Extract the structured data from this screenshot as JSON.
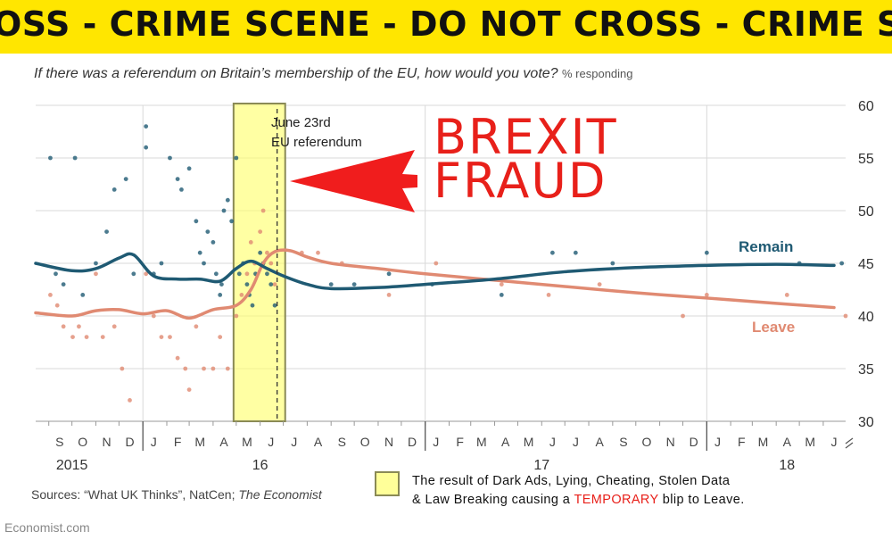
{
  "banner": {
    "text": "OSS - CRIME SCENE  -  DO NOT CROSS - CRIME SCE"
  },
  "subtitle": {
    "question": "If there was a referendum on Britain’s membership of the EU, how would you vote?",
    "units": "% responding"
  },
  "annotation": {
    "ref_line1": "June 23rd",
    "ref_line2": "EU referendum",
    "fraud_line1": "BREXIT",
    "fraud_line2": "FRAUD",
    "label_remain": "Remain",
    "label_leave": "Leave"
  },
  "sources": {
    "prefix": "Sources: “What UK Thinks”, NatCen;",
    "publication": "The Economist"
  },
  "credit": "Economist.com",
  "note": {
    "line1": "The result of Dark Ads, Lying, Cheating, Stolen Data",
    "line2_pre": "& Law Breaking causing a",
    "line2_highlight": "TEMPORARY",
    "line2_post": "blip to Leave."
  },
  "colors": {
    "remain": "#1f5a73",
    "leave": "#e08a72",
    "highlight": "#ffff99",
    "fraud": "#e8201a",
    "tape": "#ffe600"
  },
  "chart_data": {
    "type": "line",
    "y_ticks": [
      "60",
      "55",
      "50",
      "45",
      "40",
      "35",
      "30"
    ],
    "ylim": [
      30,
      60
    ],
    "month_labels": [
      "S",
      "O",
      "N",
      "D",
      "J",
      "F",
      "M",
      "A",
      "M",
      "J",
      "J",
      "A",
      "S",
      "O",
      "N",
      "D",
      "J",
      "F",
      "M",
      "A",
      "M",
      "J",
      "J",
      "A",
      "S",
      "O",
      "N",
      "D",
      "J",
      "F",
      "M",
      "A",
      "M",
      "J"
    ],
    "year_labels": [
      "2015",
      "16",
      "17",
      "18"
    ],
    "x_start": "2015-08-15",
    "x_end": "2018-06-30",
    "referendum_date": "2016-06-23",
    "highlight_range": [
      "2016-05-01",
      "2016-06-30"
    ],
    "series": [
      {
        "name": "Remain",
        "x": [
          "2015-08-15",
          "2015-10-01",
          "2015-11-01",
          "2015-12-01",
          "2015-12-20",
          "2016-01-15",
          "2016-02-15",
          "2016-03-15",
          "2016-04-10",
          "2016-05-01",
          "2016-05-20",
          "2016-06-10",
          "2016-07-01",
          "2016-08-01",
          "2016-09-01",
          "2016-11-01",
          "2017-01-01",
          "2017-04-01",
          "2017-07-01",
          "2017-10-01",
          "2018-01-01",
          "2018-04-01",
          "2018-06-15"
        ],
        "values": [
          45,
          44.3,
          44.5,
          45.5,
          45.8,
          43.8,
          43.5,
          43.5,
          43.3,
          44.5,
          45.2,
          44.5,
          43.8,
          43,
          42.6,
          42.7,
          43,
          43.5,
          44.2,
          44.6,
          44.8,
          44.9,
          44.8
        ]
      },
      {
        "name": "Leave",
        "x": [
          "2015-08-15",
          "2015-10-01",
          "2015-11-01",
          "2015-12-01",
          "2016-01-01",
          "2016-02-01",
          "2016-03-01",
          "2016-04-01",
          "2016-05-01",
          "2016-05-20",
          "2016-06-05",
          "2016-06-20",
          "2016-07-10",
          "2016-08-01",
          "2016-09-01",
          "2016-11-01",
          "2017-01-01",
          "2017-04-01",
          "2017-07-01",
          "2017-10-01",
          "2018-01-01",
          "2018-04-01",
          "2018-06-15"
        ],
        "values": [
          40.3,
          40,
          40.5,
          40.6,
          40.2,
          40.5,
          39.8,
          40.6,
          41,
          42.5,
          45,
          46.1,
          46.2,
          45.6,
          45,
          44.5,
          44,
          43.4,
          42.8,
          42.2,
          41.7,
          41.2,
          40.8
        ]
      }
    ],
    "polls": {
      "remain": [
        [
          "2015-09-03",
          55
        ],
        [
          "2015-09-10",
          44
        ],
        [
          "2015-09-20",
          43
        ],
        [
          "2015-10-05",
          55
        ],
        [
          "2015-10-15",
          42
        ],
        [
          "2015-11-01",
          45
        ],
        [
          "2015-11-15",
          48
        ],
        [
          "2015-11-25",
          52
        ],
        [
          "2015-12-10",
          53
        ],
        [
          "2015-12-20",
          44
        ],
        [
          "2016-01-05",
          58
        ],
        [
          "2016-01-05",
          56
        ],
        [
          "2016-01-15",
          44
        ],
        [
          "2016-01-25",
          45
        ],
        [
          "2016-02-05",
          55
        ],
        [
          "2016-02-15",
          53
        ],
        [
          "2016-02-20",
          52
        ],
        [
          "2016-03-01",
          54
        ],
        [
          "2016-03-10",
          49
        ],
        [
          "2016-03-15",
          46
        ],
        [
          "2016-03-20",
          45
        ],
        [
          "2016-03-25",
          48
        ],
        [
          "2016-04-01",
          47
        ],
        [
          "2016-04-05",
          44
        ],
        [
          "2016-04-10",
          42
        ],
        [
          "2016-04-12",
          43
        ],
        [
          "2016-04-15",
          50
        ],
        [
          "2016-04-20",
          51
        ],
        [
          "2016-04-25",
          49
        ],
        [
          "2016-05-01",
          55
        ],
        [
          "2016-05-05",
          44
        ],
        [
          "2016-05-10",
          45
        ],
        [
          "2016-05-15",
          43
        ],
        [
          "2016-05-18",
          42
        ],
        [
          "2016-05-22",
          41
        ],
        [
          "2016-05-26",
          44
        ],
        [
          "2016-06-01",
          46
        ],
        [
          "2016-06-05",
          45
        ],
        [
          "2016-06-10",
          44
        ],
        [
          "2016-06-15",
          43
        ],
        [
          "2016-06-20",
          41
        ],
        [
          "2016-09-01",
          43
        ],
        [
          "2016-10-01",
          43
        ],
        [
          "2016-11-15",
          44
        ],
        [
          "2017-01-10",
          43
        ],
        [
          "2017-04-10",
          42
        ],
        [
          "2017-06-15",
          46
        ],
        [
          "2017-07-15",
          46
        ],
        [
          "2017-09-01",
          45
        ],
        [
          "2018-01-01",
          46
        ],
        [
          "2018-05-01",
          45
        ],
        [
          "2018-06-25",
          45
        ]
      ],
      "leave": [
        [
          "2015-09-03",
          42
        ],
        [
          "2015-09-12",
          41
        ],
        [
          "2015-09-20",
          39
        ],
        [
          "2015-10-02",
          38
        ],
        [
          "2015-10-10",
          39
        ],
        [
          "2015-10-20",
          38
        ],
        [
          "2015-11-01",
          44
        ],
        [
          "2015-11-10",
          38
        ],
        [
          "2015-11-25",
          39
        ],
        [
          "2015-12-05",
          35
        ],
        [
          "2015-12-15",
          32
        ],
        [
          "2016-01-05",
          44
        ],
        [
          "2016-01-15",
          40
        ],
        [
          "2016-01-25",
          38
        ],
        [
          "2016-02-05",
          38
        ],
        [
          "2016-02-15",
          36
        ],
        [
          "2016-02-25",
          35
        ],
        [
          "2016-03-01",
          33
        ],
        [
          "2016-03-10",
          39
        ],
        [
          "2016-03-20",
          35
        ],
        [
          "2016-04-01",
          35
        ],
        [
          "2016-04-10",
          38
        ],
        [
          "2016-04-20",
          35
        ],
        [
          "2016-05-01",
          40
        ],
        [
          "2016-05-08",
          42
        ],
        [
          "2016-05-15",
          44
        ],
        [
          "2016-05-20",
          47
        ],
        [
          "2016-05-25",
          45
        ],
        [
          "2016-06-01",
          48
        ],
        [
          "2016-06-05",
          50
        ],
        [
          "2016-06-10",
          46
        ],
        [
          "2016-06-15",
          45
        ],
        [
          "2016-06-20",
          43
        ],
        [
          "2016-07-25",
          46
        ],
        [
          "2016-08-15",
          46
        ],
        [
          "2016-09-15",
          45
        ],
        [
          "2016-11-15",
          42
        ],
        [
          "2017-01-15",
          45
        ],
        [
          "2017-04-10",
          43
        ],
        [
          "2017-06-10",
          42
        ],
        [
          "2017-08-15",
          43
        ],
        [
          "2017-12-01",
          40
        ],
        [
          "2018-01-01",
          42
        ],
        [
          "2018-04-15",
          42
        ],
        [
          "2018-06-30",
          40
        ]
      ]
    }
  }
}
